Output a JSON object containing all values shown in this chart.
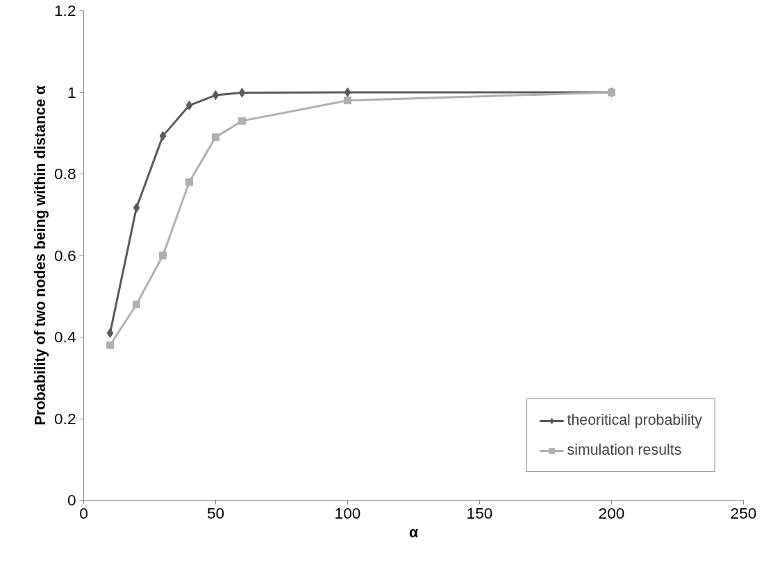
{
  "chart_data": {
    "type": "line",
    "xlabel": "α",
    "ylabel": "Probability of two nodes being within distance α",
    "x": [
      10,
      20,
      30,
      40,
      50,
      60,
      100,
      200
    ],
    "series": [
      {
        "name": "theoritical probability",
        "color": "#595959",
        "marker": "diamond",
        "values": [
          0.41,
          0.717,
          0.893,
          0.968,
          0.993,
          0.999,
          1.0,
          1.0
        ]
      },
      {
        "name": "simulation results",
        "color": "#b0b0b0",
        "marker": "square",
        "values": [
          0.38,
          0.48,
          0.6,
          0.78,
          0.89,
          0.93,
          0.98,
          1.0
        ]
      }
    ],
    "xlim": [
      0,
      250
    ],
    "xticks": [
      0,
      50,
      100,
      150,
      200,
      250
    ],
    "ylim": [
      0,
      1.2
    ],
    "yticks": [
      0,
      0.2,
      0.4,
      0.6,
      0.8,
      1,
      1.2
    ],
    "grid": false,
    "legend": "bottom right",
    "line_style": "solid"
  }
}
